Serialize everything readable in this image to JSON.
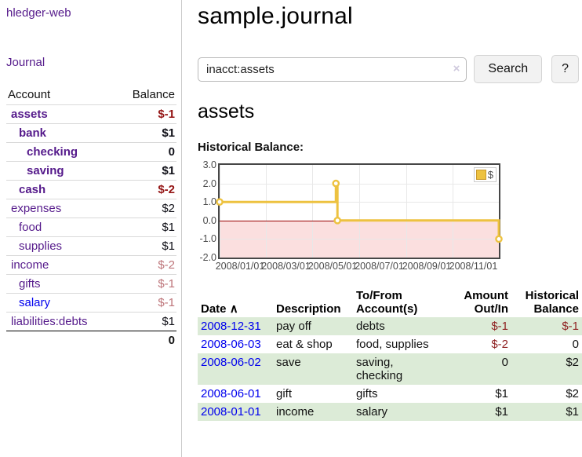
{
  "app": {
    "title": "hledger-web"
  },
  "sidebar": {
    "journal_link": "Journal",
    "accounts_table": {
      "headers": {
        "account": "Account",
        "balance": "Balance"
      },
      "rows": [
        {
          "name": "assets",
          "indent": 1,
          "bold": true,
          "link_color": "purple",
          "balance": "$-1",
          "balance_style": "neg"
        },
        {
          "name": "bank",
          "indent": 2,
          "bold": true,
          "link_color": "purple",
          "balance": "$1",
          "balance_style": "pos"
        },
        {
          "name": "checking",
          "indent": 3,
          "bold": true,
          "link_color": "purple",
          "balance": "0",
          "balance_style": "pos"
        },
        {
          "name": "saving",
          "indent": 3,
          "bold": true,
          "link_color": "purple",
          "balance": "$1",
          "balance_style": "pos"
        },
        {
          "name": "cash",
          "indent": 2,
          "bold": true,
          "link_color": "purple",
          "balance": "$-2",
          "balance_style": "neg"
        },
        {
          "name": "expenses",
          "indent": 1,
          "bold": false,
          "link_color": "purple",
          "balance": "$2",
          "balance_style": "pos"
        },
        {
          "name": "food",
          "indent": 2,
          "bold": false,
          "link_color": "purple",
          "balance": "$1",
          "balance_style": "pos"
        },
        {
          "name": "supplies",
          "indent": 2,
          "bold": false,
          "link_color": "purple",
          "balance": "$1",
          "balance_style": "pos"
        },
        {
          "name": "income",
          "indent": 1,
          "bold": false,
          "link_color": "purple",
          "balance": "$-2",
          "balance_style": "neg-muted"
        },
        {
          "name": "gifts",
          "indent": 2,
          "bold": false,
          "link_color": "purple",
          "balance": "$-1",
          "balance_style": "neg-muted"
        },
        {
          "name": "salary",
          "indent": 2,
          "bold": false,
          "link_color": "blue",
          "balance": "$-1",
          "balance_style": "neg-muted"
        },
        {
          "name": "liabilities:debts",
          "indent": 1,
          "bold": false,
          "link_color": "purple",
          "balance": "$1",
          "balance_style": "pos"
        }
      ],
      "total": "0"
    }
  },
  "main": {
    "title": "sample.journal",
    "search": {
      "value": "inacct:assets",
      "clear_icon": "×",
      "button_label": "Search",
      "help_label": "?"
    },
    "account_heading": "assets",
    "chart_label": "Historical Balance:",
    "register_table": {
      "headers": {
        "date": "Date",
        "sort_icon": "∧",
        "description": "Description",
        "accounts": "To/From Account(s)",
        "amount": "Amount Out/In",
        "balance": "Historical Balance"
      },
      "rows": [
        {
          "date": "2008-12-31",
          "description": "pay off",
          "accounts": "debts",
          "amount": "$-1",
          "amount_neg": true,
          "balance": "$-1",
          "balance_neg": true,
          "green": true
        },
        {
          "date": "2008-06-03",
          "description": "eat & shop",
          "accounts": "food, supplies",
          "amount": "$-2",
          "amount_neg": true,
          "balance": "0",
          "balance_neg": false,
          "green": false
        },
        {
          "date": "2008-06-02",
          "description": "save",
          "accounts": "saving, checking",
          "amount": "0",
          "amount_neg": false,
          "balance": "$2",
          "balance_neg": false,
          "green": true
        },
        {
          "date": "2008-06-01",
          "description": "gift",
          "accounts": "gifts",
          "amount": "$1",
          "amount_neg": false,
          "balance": "$2",
          "balance_neg": false,
          "green": false
        },
        {
          "date": "2008-01-01",
          "description": "income",
          "accounts": "salary",
          "amount": "$1",
          "amount_neg": false,
          "balance": "$1",
          "balance_neg": false,
          "green": true
        }
      ]
    }
  },
  "chart_data": {
    "type": "line",
    "title": "Historical Balance",
    "step": true,
    "series": [
      {
        "name": "$",
        "color": "#edc240",
        "points": [
          [
            "2008-01-01",
            1
          ],
          [
            "2008-06-01",
            2
          ],
          [
            "2008-06-02",
            2
          ],
          [
            "2008-06-03",
            0
          ],
          [
            "2008-12-31",
            -1
          ]
        ]
      }
    ],
    "x_range": [
      "2008-01-01",
      "2008-12-31"
    ],
    "x_ticks": [
      "2008/01/01",
      "2008/03/01",
      "2008/05/01",
      "2008/07/01",
      "2008/09/01",
      "2008/11/01"
    ],
    "y_range": [
      -2,
      3
    ],
    "y_ticks": [
      3.0,
      2.0,
      1.0,
      0.0,
      -1.0,
      -2.0
    ],
    "grid": true,
    "legend_position": "top-right",
    "legend_label": "$",
    "zero_line_color": "#990000",
    "negative_region_color": "#fbdfdf"
  }
}
